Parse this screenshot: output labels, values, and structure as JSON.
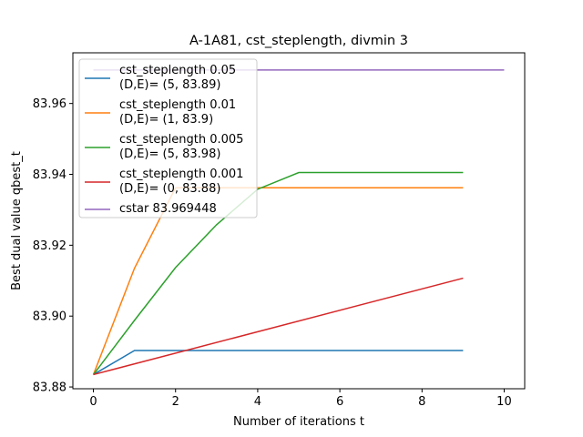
{
  "chart_data": {
    "type": "line",
    "title": "A-1A81, cst_steplength, divmin 3",
    "xlabel": "Number of iterations t",
    "ylabel": "Best dual value qbest_t",
    "xlim": [
      -0.5,
      10.5
    ],
    "ylim": [
      83.8795,
      83.9743
    ],
    "x_ticks": [
      0,
      2,
      4,
      6,
      8,
      10
    ],
    "y_ticks": [
      83.88,
      83.9,
      83.92,
      83.94,
      83.96
    ],
    "y_tick_labels": [
      "83.88",
      "83.90",
      "83.92",
      "83.94",
      "83.96"
    ],
    "grid": false,
    "legend_position": "upper-left",
    "series": [
      {
        "name": "cst_steplength 0.05\n(D,E)= (5, 83.89)",
        "color": "#1f77b4",
        "x": [
          0,
          1,
          2,
          3,
          4,
          5,
          6,
          7,
          8,
          9
        ],
        "y": [
          83.8835,
          83.8903,
          83.8903,
          83.8903,
          83.8903,
          83.8903,
          83.8903,
          83.8903,
          83.8903,
          83.8903
        ]
      },
      {
        "name": "cst_steplength 0.01\n(D,E)= (1, 83.9)",
        "color": "#ff7f0e",
        "x": [
          0,
          1,
          2,
          3,
          4,
          5,
          6,
          7,
          8,
          9
        ],
        "y": [
          83.8835,
          83.9135,
          83.9362,
          83.9362,
          83.9362,
          83.9362,
          83.9362,
          83.9362,
          83.9362,
          83.9362
        ]
      },
      {
        "name": "cst_steplength 0.005\n(D,E)= (5, 83.98)",
        "color": "#2ca02c",
        "x": [
          0,
          1,
          2,
          3,
          4,
          5,
          6,
          7,
          8,
          9
        ],
        "y": [
          83.8835,
          83.8988,
          83.9137,
          83.9258,
          83.9358,
          83.9405,
          83.9405,
          83.9405,
          83.9405,
          83.9405
        ]
      },
      {
        "name": "cst_steplength 0.001\n(D,E)= (0, 83.88)",
        "color": "#d62728",
        "x": [
          0,
          9
        ],
        "y": [
          83.8835,
          83.9107
        ]
      },
      {
        "name": "cstar 83.969448",
        "color": "#9467bd",
        "x": [
          0,
          10
        ],
        "y": [
          83.969448,
          83.969448
        ]
      }
    ]
  }
}
